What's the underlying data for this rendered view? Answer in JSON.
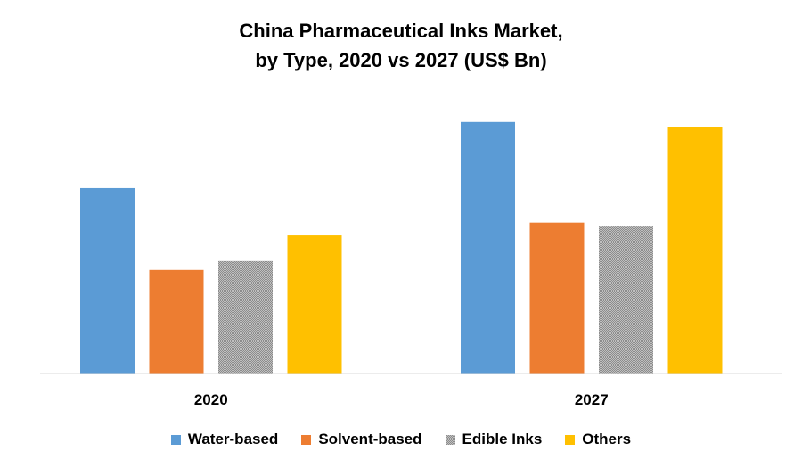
{
  "chart_data": {
    "type": "bar",
    "title_lines": [
      "China Pharmaceutical Inks Market,",
      "by Type, 2020 vs 2027 (US$ Bn)"
    ],
    "categories": [
      "2020",
      "2027"
    ],
    "series": [
      {
        "name": "Water-based",
        "values": [
          1.88,
          2.55
        ],
        "color": "#5B9BD5"
      },
      {
        "name": "Solvent-based",
        "values": [
          1.05,
          1.53
        ],
        "color": "#ED7D31"
      },
      {
        "name": "Edible Inks",
        "values": [
          1.14,
          1.49
        ],
        "color": "#A5A5A5",
        "pattern": "gray-dither"
      },
      {
        "name": "Others",
        "values": [
          1.4,
          2.5
        ],
        "color": "#FFC000"
      }
    ],
    "ylim": [
      0,
      3.0
    ],
    "grid": false,
    "legend_position": "bottom"
  }
}
